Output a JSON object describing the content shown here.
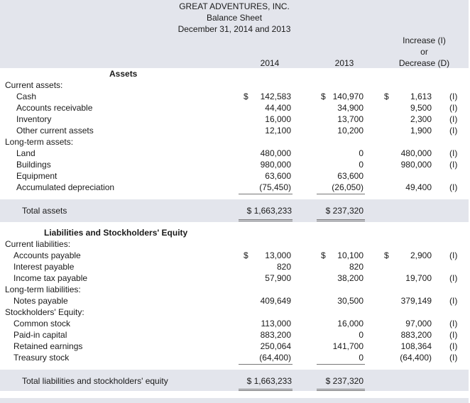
{
  "header": {
    "company": "GREAT ADVENTURES, INC.",
    "statement": "Balance Sheet",
    "dates": "December 31, 2014 and 2013",
    "col_2014": "2014",
    "col_2013": "2013",
    "col_change_1": "Increase (I)",
    "col_change_2": "or",
    "col_change_3": "Decrease (D)"
  },
  "assets": {
    "title": "Assets",
    "current_heading": "Current assets:",
    "longterm_heading": "Long-term assets:",
    "rows": [
      {
        "label": "Cash",
        "y2014": "142,583",
        "y2013": "140,970",
        "change": "1,613",
        "flag": "(I)"
      },
      {
        "label": "Accounts receivable",
        "y2014": "44,400",
        "y2013": "34,900",
        "change": "9,500",
        "flag": "(I)"
      },
      {
        "label": "Inventory",
        "y2014": "16,000",
        "y2013": "13,700",
        "change": "2,300",
        "flag": "(I)"
      },
      {
        "label": "Other current assets",
        "y2014": "12,100",
        "y2013": "10,200",
        "change": "1,900",
        "flag": "(I)"
      },
      {
        "label": "Land",
        "y2014": "480,000",
        "y2013": "0",
        "change": "480,000",
        "flag": "(I)"
      },
      {
        "label": "Buildings",
        "y2014": "980,000",
        "y2013": "0",
        "change": "980,000",
        "flag": "(I)"
      },
      {
        "label": "Equipment",
        "y2014": "63,600",
        "y2013": "63,600",
        "change": "",
        "flag": ""
      },
      {
        "label": "Accumulated depreciation",
        "y2014": "(75,450)",
        "y2013": "(26,050)",
        "change": "49,400",
        "flag": "(I)"
      }
    ],
    "total_label": "Total assets",
    "total_2014": "$ 1,663,233",
    "total_2013": "$  237,320"
  },
  "liabilities": {
    "title": "Liabilities and Stockholders' Equity",
    "current_heading": "Current liabilities:",
    "longterm_heading": "Long-term liabilities:",
    "equity_heading": "Stockholders' Equity:",
    "rows": [
      {
        "label": "Accounts payable",
        "y2014": "13,000",
        "y2013": "10,100",
        "change": "2,900",
        "flag": "(I)"
      },
      {
        "label": "Interest payable",
        "y2014": "820",
        "y2013": "820",
        "change": "",
        "flag": ""
      },
      {
        "label": "Income tax payable",
        "y2014": "57,900",
        "y2013": "38,200",
        "change": "19,700",
        "flag": "(I)"
      },
      {
        "label": "Notes payable",
        "y2014": "409,649",
        "y2013": "30,500",
        "change": "379,149",
        "flag": "(I)"
      },
      {
        "label": "Common stock",
        "y2014": "113,000",
        "y2013": "16,000",
        "change": "97,000",
        "flag": "(I)"
      },
      {
        "label": "Paid-in capital",
        "y2014": "883,200",
        "y2013": "0",
        "change": "883,200",
        "flag": "(I)"
      },
      {
        "label": "Retained earnings",
        "y2014": "250,064",
        "y2013": "141,700",
        "change": "108,364",
        "flag": "(I)"
      },
      {
        "label": "Treasury stock",
        "y2014": "(64,400)",
        "y2013": "0",
        "change": "(64,400)",
        "flag": "(I)"
      }
    ],
    "total_label": "Total liabilities and stockholders' equity",
    "total_2014": "$ 1,663,233",
    "total_2013": "$  237,320"
  },
  "currency_symbol": "$"
}
